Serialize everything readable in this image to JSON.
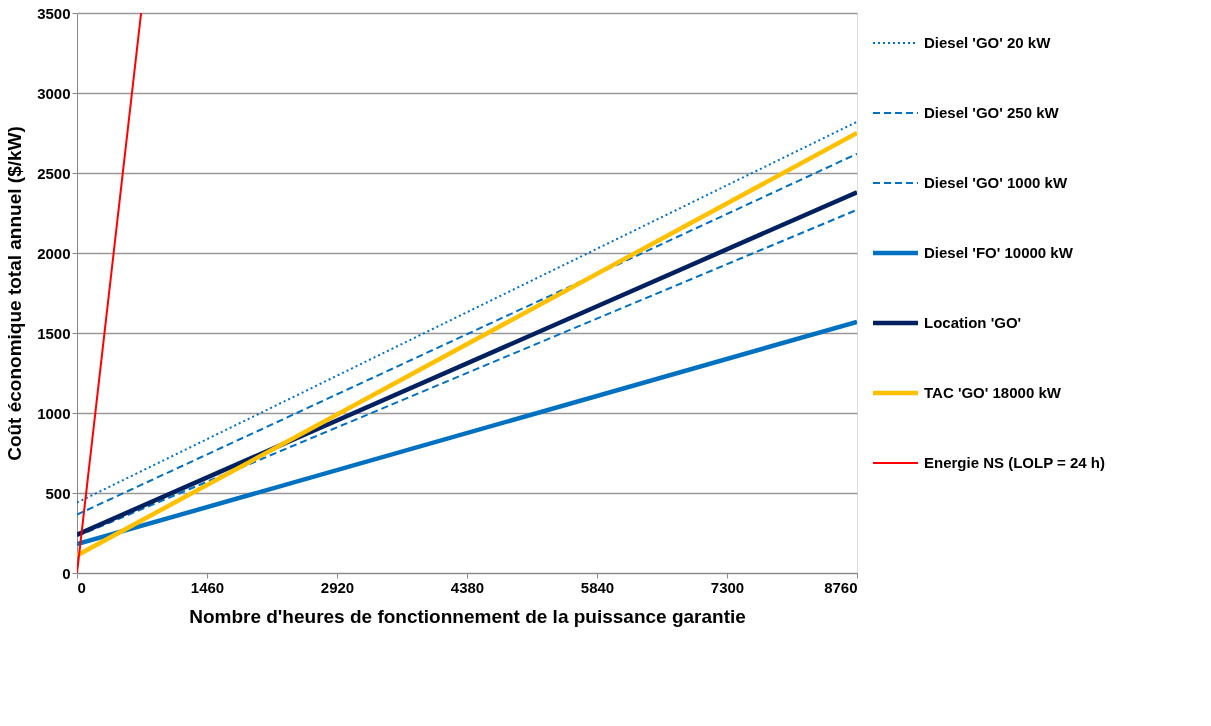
{
  "chart_data": {
    "type": "line",
    "xlabel": "Nombre d'heures de fonctionnement de la puissance garantie",
    "ylabel": "Coût économique total annuel ($/kW)",
    "xlim": [
      0,
      8760
    ],
    "xticks": [
      0,
      1460,
      2920,
      4380,
      5840,
      7300,
      8760
    ],
    "ylim": [
      0,
      3500
    ],
    "yticks": [
      0,
      500,
      1000,
      1500,
      2000,
      2500,
      3000,
      3500
    ],
    "grid": "y",
    "legend": "right",
    "marker": "none",
    "series": [
      {
        "name": "Diesel 'GO' 20 kW",
        "color": "#0070c0",
        "line_style": "dotted",
        "x": [
          0,
          8760
        ],
        "values": [
          440,
          2820
        ]
      },
      {
        "name": "Diesel 'GO' 250 kW",
        "color": "#0070c0",
        "line_style": "dashed",
        "x": [
          0,
          8760
        ],
        "values": [
          365,
          2620
        ]
      },
      {
        "name": "Diesel 'GO' 1000 kW",
        "color": "#0070c0",
        "line_style": "dashed",
        "x": [
          0,
          8760
        ],
        "values": [
          230,
          2270
        ]
      },
      {
        "name": "Diesel 'FO' 10000 kW",
        "color": "#0070c0",
        "line_style": "solid",
        "x": [
          0,
          8760
        ],
        "values": [
          180,
          1570
        ]
      },
      {
        "name": "Location 'GO'",
        "color": "#002060",
        "line_style": "solid",
        "x": [
          0,
          8760
        ],
        "values": [
          240,
          2380
        ]
      },
      {
        "name": "TAC 'GO' 18000 kW",
        "color": "#ffc000",
        "line_style": "solid",
        "x": [
          0,
          8760
        ],
        "values": [
          110,
          2750
        ]
      },
      {
        "name": "Energie NS (LOLP = 24 h)",
        "color": "#ff0000",
        "line_style": "solid",
        "x": [
          0,
          720
        ],
        "values": [
          0,
          3500
        ]
      }
    ]
  }
}
